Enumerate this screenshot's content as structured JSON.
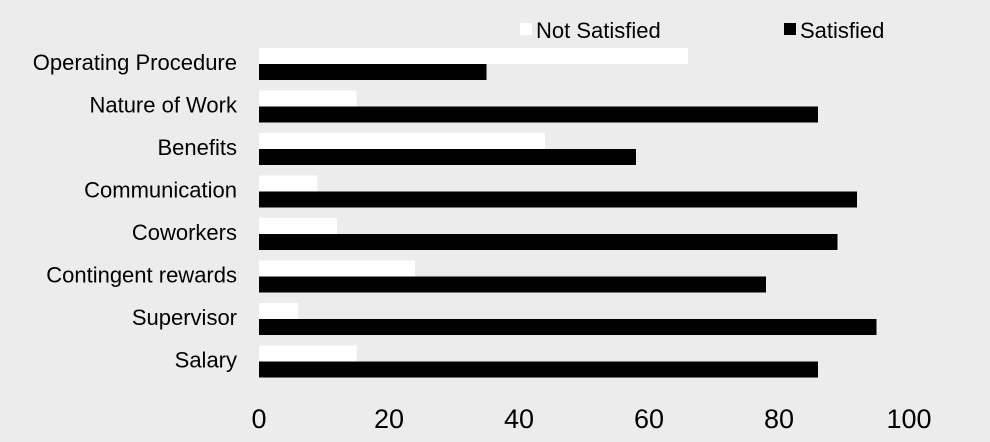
{
  "chart_data": {
    "type": "bar",
    "orientation": "horizontal",
    "categories": [
      "Operating Procedure",
      "Nature of Work",
      "Benefits",
      "Communication",
      "Coworkers",
      "Contingent rewards",
      "Supervisor",
      "Salary"
    ],
    "series": [
      {
        "name": "Not Satisfied",
        "color": "#ffffff",
        "values": [
          66,
          15,
          44,
          9,
          12,
          24,
          6,
          15
        ]
      },
      {
        "name": "Satisfied",
        "color": "#000000",
        "values": [
          35,
          86,
          58,
          92,
          89,
          78,
          95,
          86
        ]
      }
    ],
    "xlim": [
      0,
      100
    ],
    "xticks": [
      "0",
      "20",
      "40",
      "60",
      "80",
      "100"
    ],
    "grid": false,
    "legend_position": "top-right",
    "title": "",
    "xlabel": "",
    "ylabel": ""
  }
}
